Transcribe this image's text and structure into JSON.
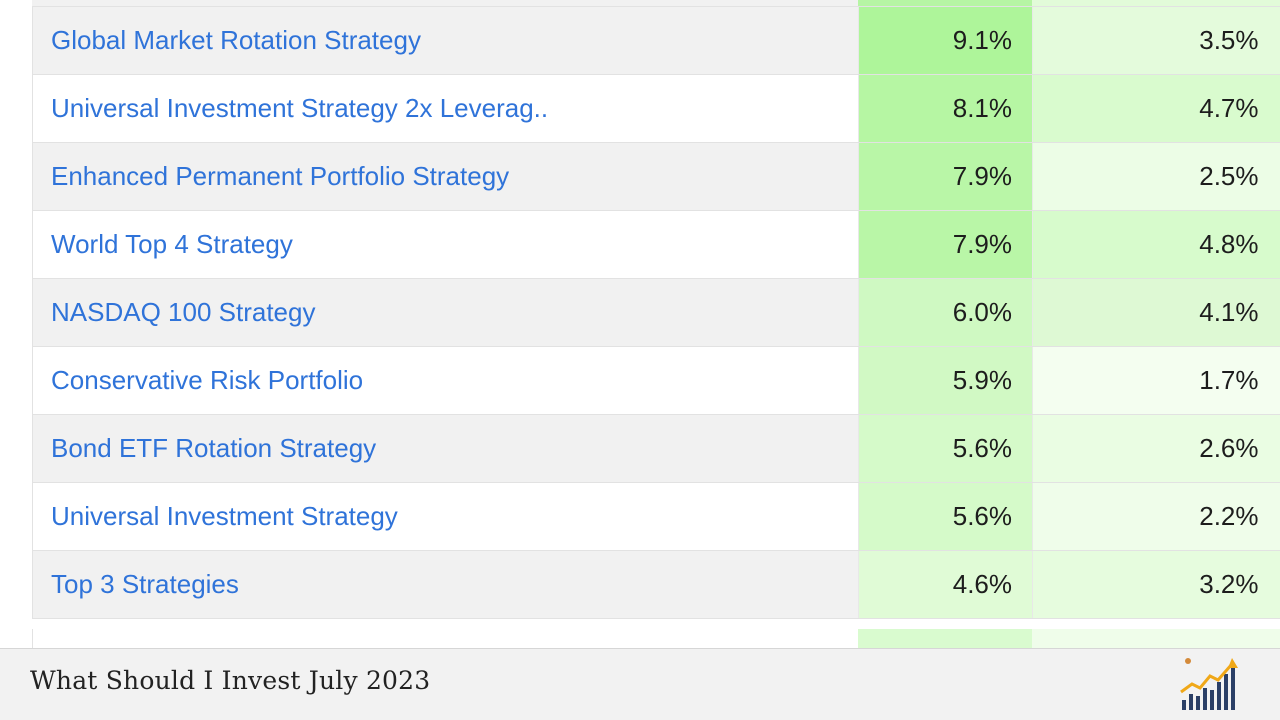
{
  "table": {
    "rows": [
      {
        "name": "Global Market Rotation Strategy",
        "col_a": "9.1%",
        "col_b": "3.5%",
        "bg_a": "#aef59a",
        "bg_b": "#e4fbdc"
      },
      {
        "name": "Universal Investment Strategy 2x Leverag..",
        "col_a": "8.1%",
        "col_b": "4.7%",
        "bg_a": "#b6f6a3",
        "bg_b": "#d9fbce"
      },
      {
        "name": "Enhanced Permanent Portfolio Strategy",
        "col_a": "7.9%",
        "col_b": "2.5%",
        "bg_a": "#b9f6a7",
        "bg_b": "#ecfde6"
      },
      {
        "name": "World Top 4 Strategy",
        "col_a": "7.9%",
        "col_b": "4.8%",
        "bg_a": "#b9f6a7",
        "bg_b": "#d7fbcc"
      },
      {
        "name": "NASDAQ 100 Strategy",
        "col_a": "6.0%",
        "col_b": "4.1%",
        "bg_a": "#cff9c2",
        "bg_b": "#def9d4"
      },
      {
        "name": "Conservative Risk Portfolio",
        "col_a": "5.9%",
        "col_b": "1.7%",
        "bg_a": "#d1f9c4",
        "bg_b": "#f4fef0"
      },
      {
        "name": "Bond ETF Rotation Strategy",
        "col_a": "5.6%",
        "col_b": "2.6%",
        "bg_a": "#d5fac9",
        "bg_b": "#eafde3"
      },
      {
        "name": "Universal Investment Strategy",
        "col_a": "5.6%",
        "col_b": "2.2%",
        "bg_a": "#d5fac9",
        "bg_b": "#effdea"
      },
      {
        "name": "Top 3 Strategies",
        "col_a": "4.6%",
        "col_b": "3.2%",
        "bg_a": "#e0fbd6",
        "bg_b": "#e6fcde"
      }
    ]
  },
  "footer": {
    "title": "What Should I Invest July 2023",
    "logo_icon": "growth-chart-logo-icon"
  }
}
